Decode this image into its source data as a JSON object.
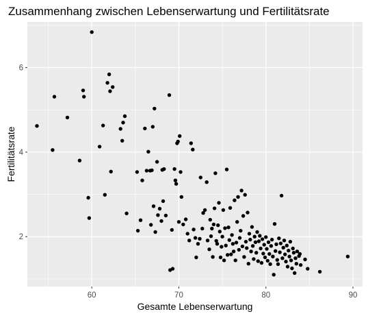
{
  "chart_data": {
    "type": "scatter",
    "title": "Zusammenhang zwischen Lebenserwartung und Fertilitätsrate",
    "xlabel": "Gesamte Lebenserwartung",
    "ylabel": "Fertilitätsrate",
    "xlim": [
      52.6,
      91.1
    ],
    "ylim": [
      0.82,
      7.08
    ],
    "xticks": [
      60,
      70,
      80,
      90
    ],
    "xticks_minor": [
      55,
      65,
      75,
      85
    ],
    "yticks": [
      2,
      4,
      6
    ],
    "yticks_minor": [
      1,
      3,
      5,
      7
    ],
    "grid": true,
    "background": "#ebebeb",
    "grid_color": "#ffffff",
    "point_color": "#000000",
    "points": [
      [
        53.7,
        4.62
      ],
      [
        55.5,
        4.05
      ],
      [
        55.7,
        5.31
      ],
      [
        57.2,
        4.82
      ],
      [
        58.6,
        3.8
      ],
      [
        59.0,
        5.46
      ],
      [
        59.1,
        5.31
      ],
      [
        59.6,
        2.92
      ],
      [
        59.7,
        2.44
      ],
      [
        60.0,
        6.84
      ],
      [
        60.9,
        4.13
      ],
      [
        61.3,
        4.63
      ],
      [
        61.5,
        2.99
      ],
      [
        61.8,
        5.64
      ],
      [
        62.0,
        5.84
      ],
      [
        62.1,
        5.44
      ],
      [
        62.2,
        3.54
      ],
      [
        62.4,
        5.54
      ],
      [
        63.3,
        4.55
      ],
      [
        63.5,
        4.27
      ],
      [
        63.6,
        4.7
      ],
      [
        63.8,
        4.85
      ],
      [
        64.0,
        2.55
      ],
      [
        65.2,
        3.53
      ],
      [
        65.3,
        2.14
      ],
      [
        65.6,
        2.39
      ],
      [
        65.8,
        3.33
      ],
      [
        66.1,
        4.56
      ],
      [
        66.3,
        3.56
      ],
      [
        66.5,
        4.01
      ],
      [
        66.7,
        3.56
      ],
      [
        66.8,
        2.28
      ],
      [
        66.9,
        3.57
      ],
      [
        67.0,
        4.6
      ],
      [
        67.1,
        2.72
      ],
      [
        67.2,
        5.03
      ],
      [
        67.3,
        2.11
      ],
      [
        67.5,
        3.77
      ],
      [
        67.6,
        2.51
      ],
      [
        67.8,
        2.66
      ],
      [
        68.0,
        2.37
      ],
      [
        68.1,
        3.58
      ],
      [
        68.2,
        2.84
      ],
      [
        68.3,
        3.6
      ],
      [
        68.5,
        2.5
      ],
      [
        68.9,
        5.35
      ],
      [
        69.0,
        1.21
      ],
      [
        69.2,
        2.16
      ],
      [
        69.3,
        1.24
      ],
      [
        69.5,
        3.6
      ],
      [
        69.6,
        3.33
      ],
      [
        69.7,
        3.25
      ],
      [
        69.8,
        4.21
      ],
      [
        69.9,
        4.25
      ],
      [
        70.0,
        2.35
      ],
      [
        70.1,
        4.38
      ],
      [
        70.2,
        3.53
      ],
      [
        70.3,
        2.94
      ],
      [
        70.5,
        2.29
      ],
      [
        70.8,
        2.41
      ],
      [
        71.0,
        2.07
      ],
      [
        71.2,
        1.91
      ],
      [
        71.4,
        4.21
      ],
      [
        71.6,
        4.06
      ],
      [
        71.7,
        2.17
      ],
      [
        71.9,
        1.97
      ],
      [
        72.0,
        1.51
      ],
      [
        72.2,
        1.83
      ],
      [
        72.4,
        1.95
      ],
      [
        72.5,
        3.4
      ],
      [
        72.7,
        2.19
      ],
      [
        72.8,
        2.56
      ],
      [
        73.0,
        2.63
      ],
      [
        73.2,
        3.29
      ],
      [
        73.3,
        1.91
      ],
      [
        73.5,
        1.7
      ],
      [
        73.6,
        2.4
      ],
      [
        73.7,
        2.01
      ],
      [
        73.8,
        2.19
      ],
      [
        73.9,
        1.52
      ],
      [
        74.0,
        2.29
      ],
      [
        74.1,
        2.67
      ],
      [
        74.2,
        3.5
      ],
      [
        74.3,
        1.9
      ],
      [
        74.4,
        1.83
      ],
      [
        74.5,
        2.27
      ],
      [
        74.6,
        2.8
      ],
      [
        74.7,
        2.12
      ],
      [
        74.8,
        1.51
      ],
      [
        74.9,
        1.76
      ],
      [
        75.0,
        2.0
      ],
      [
        75.1,
        2.63
      ],
      [
        75.2,
        1.44
      ],
      [
        75.3,
        2.2
      ],
      [
        75.4,
        1.79
      ],
      [
        75.5,
        3.59
      ],
      [
        75.6,
        1.57
      ],
      [
        75.7,
        2.22
      ],
      [
        75.8,
        1.92
      ],
      [
        75.9,
        2.68
      ],
      [
        76.0,
        1.58
      ],
      [
        76.1,
        2.04
      ],
      [
        76.2,
        1.83
      ],
      [
        76.3,
        1.65
      ],
      [
        76.4,
        2.86
      ],
      [
        76.5,
        1.44
      ],
      [
        76.6,
        1.86
      ],
      [
        76.7,
        2.35
      ],
      [
        76.8,
        2.94
      ],
      [
        76.9,
        1.69
      ],
      [
        77.0,
        1.97
      ],
      [
        77.1,
        2.14
      ],
      [
        77.2,
        3.09
      ],
      [
        77.3,
        1.77
      ],
      [
        77.4,
        2.49
      ],
      [
        77.5,
        1.52
      ],
      [
        77.6,
        2.99
      ],
      [
        77.7,
        1.88
      ],
      [
        77.8,
        1.73
      ],
      [
        77.9,
        2.57
      ],
      [
        78.0,
        1.36
      ],
      [
        78.1,
        2.07
      ],
      [
        78.2,
        1.93
      ],
      [
        78.3,
        1.65
      ],
      [
        78.4,
        2.23
      ],
      [
        78.5,
        1.78
      ],
      [
        78.6,
        1.47
      ],
      [
        78.7,
        2.0
      ],
      [
        78.8,
        1.87
      ],
      [
        78.9,
        1.62
      ],
      [
        79.0,
        2.11
      ],
      [
        79.1,
        1.42
      ],
      [
        79.2,
        1.89
      ],
      [
        79.3,
        2.02
      ],
      [
        79.4,
        1.72
      ],
      [
        79.5,
        1.38
      ],
      [
        79.6,
        1.94
      ],
      [
        79.7,
        1.6
      ],
      [
        79.8,
        1.81
      ],
      [
        79.9,
        1.51
      ],
      [
        80.0,
        1.99
      ],
      [
        80.1,
        1.71
      ],
      [
        80.2,
        1.43
      ],
      [
        80.3,
        1.87
      ],
      [
        80.4,
        1.59
      ],
      [
        80.5,
        1.35
      ],
      [
        80.6,
        1.78
      ],
      [
        80.7,
        1.93
      ],
      [
        80.8,
        1.53
      ],
      [
        80.9,
        1.1
      ],
      [
        81.0,
        2.3
      ],
      [
        81.1,
        1.66
      ],
      [
        81.2,
        1.82
      ],
      [
        81.3,
        1.45
      ],
      [
        81.4,
        1.35
      ],
      [
        81.5,
        1.96
      ],
      [
        81.6,
        1.63
      ],
      [
        81.7,
        1.84
      ],
      [
        81.8,
        2.97
      ],
      [
        81.9,
        1.49
      ],
      [
        82.0,
        1.74
      ],
      [
        82.1,
        1.91
      ],
      [
        82.2,
        1.58
      ],
      [
        82.3,
        1.41
      ],
      [
        82.4,
        1.79
      ],
      [
        82.5,
        1.29
      ],
      [
        82.6,
        1.67
      ],
      [
        82.7,
        1.53
      ],
      [
        82.8,
        1.88
      ],
      [
        82.9,
        1.44
      ],
      [
        83.0,
        1.25
      ],
      [
        83.1,
        1.72
      ],
      [
        83.2,
        1.62
      ],
      [
        83.3,
        1.14
      ],
      [
        83.4,
        1.49
      ],
      [
        83.5,
        1.36
      ],
      [
        83.6,
        1.65
      ],
      [
        83.8,
        1.54
      ],
      [
        83.9,
        1.59
      ],
      [
        84.0,
        1.33
      ],
      [
        84.5,
        1.46
      ],
      [
        84.8,
        1.24
      ],
      [
        86.2,
        1.17
      ],
      [
        89.4,
        1.53
      ]
    ]
  }
}
